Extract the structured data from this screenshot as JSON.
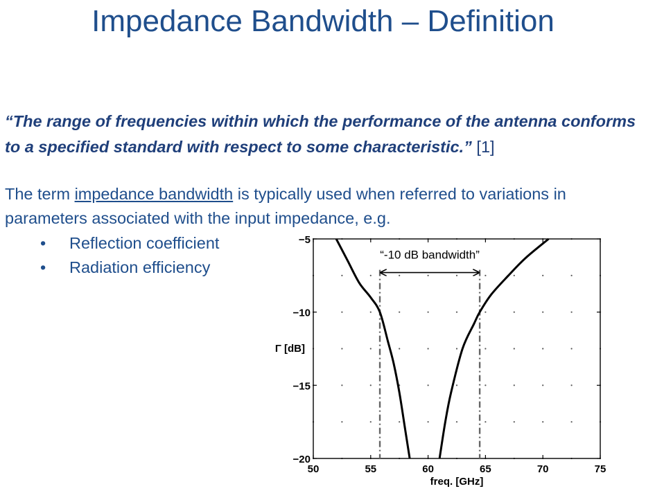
{
  "slide": {
    "title": "Impedance Bandwidth – Definition",
    "quote_text": "“The range of frequencies within which the performance of the antenna conforms to a specified standard with respect to some characteristic.”",
    "quote_ref": "[1]",
    "intro_prefix": "The term ",
    "intro_term": "impedance bandwidth",
    "intro_suffix": " is typically used when referred to variations in parameters associated with the input impedance, e.g.",
    "bullet_symbol": "•",
    "bullets": [
      "Reflection coefficient",
      "Radiation efficiency"
    ],
    "text_color": "#1f4e8c"
  },
  "chart_data": {
    "type": "line",
    "title": "",
    "xlabel": "freq. [GHz]",
    "ylabel": "Γ [dB]",
    "xlim": [
      50,
      75
    ],
    "ylim": [
      -20,
      -5
    ],
    "xticks": [
      50,
      55,
      60,
      65,
      70,
      75
    ],
    "yticks": [
      -5,
      -10,
      -15,
      -20
    ],
    "grid": "dotted",
    "series": [
      {
        "x": [
          52.0,
          53.0,
          54.0,
          55.0,
          55.8,
          56.5,
          57.0,
          57.5,
          58.0,
          58.4
        ],
        "y": [
          -5.0,
          -6.5,
          -8.0,
          -9.0,
          -10.0,
          -12.0,
          -13.5,
          -15.5,
          -18.0,
          -20.0
        ]
      },
      {
        "x": [
          61.0,
          61.5,
          62.0,
          63.0,
          64.0,
          64.5,
          65.5,
          67.0,
          68.5,
          70.5
        ],
        "y": [
          -20.0,
          -17.5,
          -15.5,
          -12.5,
          -10.8,
          -10.0,
          -8.8,
          -7.5,
          -6.3,
          -5.0
        ]
      }
    ],
    "markers": [
      55.8,
      64.5
    ],
    "annotation": {
      "label": "“-10 dB bandwidth”",
      "from": 55.8,
      "to": 64.5,
      "y": -7.3
    }
  }
}
